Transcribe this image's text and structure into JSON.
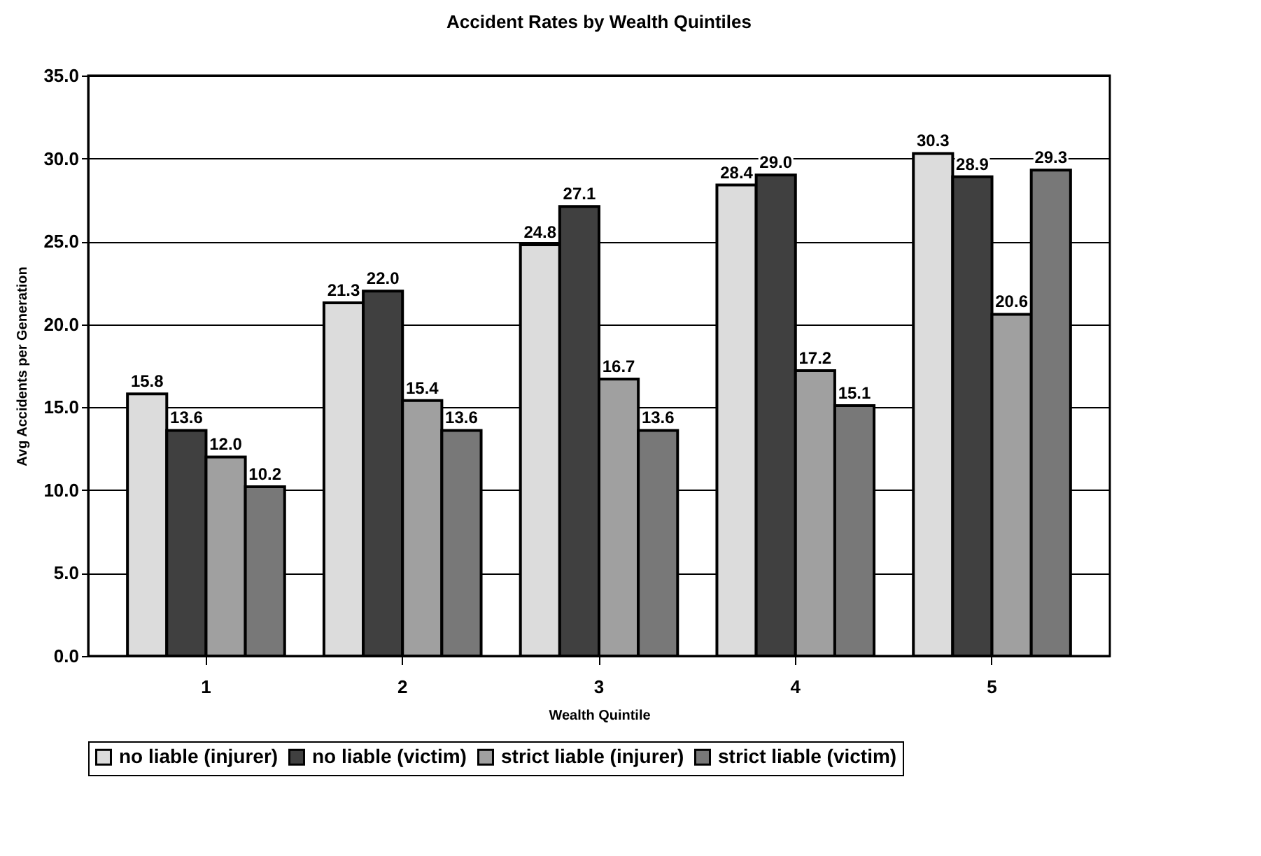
{
  "chart_data": {
    "type": "bar",
    "title": "Accident Rates by Wealth Quintiles",
    "xlabel": "Wealth Quintile",
    "ylabel": "Avg Accidents per Generation",
    "categories": [
      "1",
      "2",
      "3",
      "4",
      "5"
    ],
    "series": [
      {
        "name": "no liable (injurer)",
        "color": "#dcdcdc",
        "values": [
          15.8,
          21.3,
          24.8,
          28.4,
          30.3
        ]
      },
      {
        "name": "no liable (victim)",
        "color": "#404040",
        "values": [
          13.6,
          22.0,
          27.1,
          29.0,
          28.9
        ]
      },
      {
        "name": "strict liable (injurer)",
        "color": "#a0a0a0",
        "values": [
          12.0,
          15.4,
          16.7,
          17.2,
          20.6
        ]
      },
      {
        "name": "strict liable (victim)",
        "color": "#787878",
        "values": [
          10.2,
          13.6,
          13.6,
          15.1,
          29.3
        ]
      }
    ],
    "ylim": [
      0,
      35
    ],
    "yticks": [
      {
        "value": 0,
        "label": "0.0"
      },
      {
        "value": 5,
        "label": "5.0"
      },
      {
        "value": 10,
        "label": "10.0"
      },
      {
        "value": 15,
        "label": "15.0"
      },
      {
        "value": 20,
        "label": "20.0"
      },
      {
        "value": 25,
        "label": "25.0"
      },
      {
        "value": 30,
        "label": "30.0"
      },
      {
        "value": 35,
        "label": "35.0"
      }
    ],
    "value_labels": [
      [
        "15.8",
        "21.3",
        "24.8",
        "28.4",
        "30.3"
      ],
      [
        "13.6",
        "22.0",
        "27.1",
        "29.0",
        "28.9"
      ],
      [
        "12.0",
        "15.4",
        "16.7",
        "17.2",
        "20.6"
      ],
      [
        "10.2",
        "13.6",
        "13.6",
        "15.1",
        "29.3"
      ]
    ],
    "grid": "y",
    "legend": "bottom"
  }
}
